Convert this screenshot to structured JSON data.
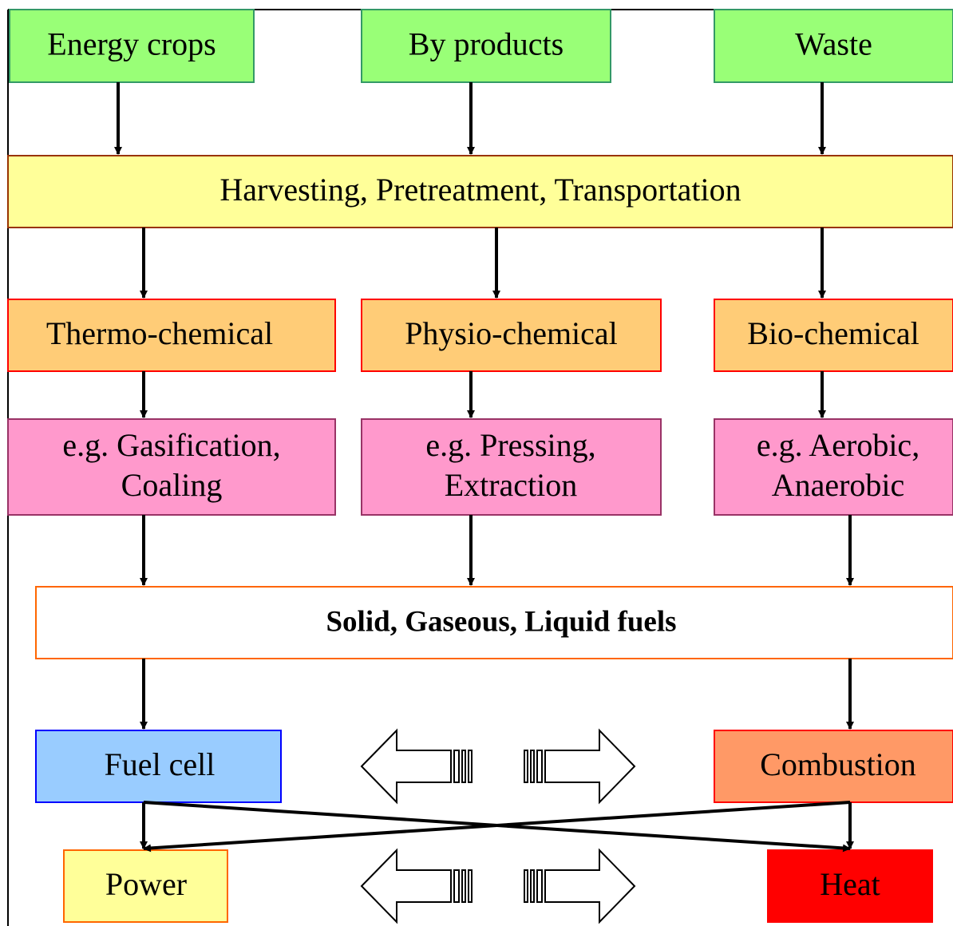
{
  "nodes": [
    {
      "lines": [
        "Energy crops"
      ]
    },
    {
      "lines": [
        "By products"
      ]
    },
    {
      "lines": [
        "Waste"
      ]
    },
    {
      "lines": [
        "Harvesting, Pretreatment, Transportation"
      ]
    },
    {
      "lines": [
        "Thermo-chemical"
      ]
    },
    {
      "lines": [
        "Physio-chemical"
      ]
    },
    {
      "lines": [
        "Bio-chemical"
      ]
    },
    {
      "lines": [
        "e.g. Gasification,",
        "Coaling"
      ]
    },
    {
      "lines": [
        "e.g. Pressing,",
        "Extraction"
      ]
    },
    {
      "lines": [
        "e.g. Aerobic,",
        "Anaerobic"
      ]
    },
    {
      "lines": [
        "Solid, Gaseous, Liquid fuels"
      ]
    },
    {
      "lines": [
        "Fuel cell"
      ]
    },
    {
      "lines": [
        "Combustion"
      ]
    },
    {
      "lines": [
        "Power"
      ]
    },
    {
      "lines": [
        "Heat"
      ]
    }
  ]
}
